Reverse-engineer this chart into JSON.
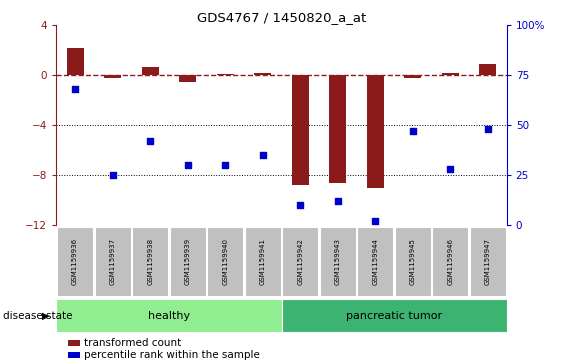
{
  "title": "GDS4767 / 1450820_a_at",
  "samples": [
    "GSM1159936",
    "GSM1159937",
    "GSM1159938",
    "GSM1159939",
    "GSM1159940",
    "GSM1159941",
    "GSM1159942",
    "GSM1159943",
    "GSM1159944",
    "GSM1159945",
    "GSM1159946",
    "GSM1159947"
  ],
  "bar_values": [
    2.2,
    -0.2,
    0.7,
    -0.5,
    0.1,
    0.2,
    -8.8,
    -8.6,
    -9.0,
    -0.2,
    0.15,
    0.9
  ],
  "scatter_values": [
    68,
    25,
    42,
    30,
    30,
    35,
    10,
    12,
    2,
    47,
    28,
    48
  ],
  "ylim_left": [
    -12,
    4
  ],
  "ylim_right": [
    0,
    100
  ],
  "yticks_left": [
    4,
    0,
    -4,
    -8,
    -12
  ],
  "yticks_right": [
    100,
    75,
    50,
    25,
    0
  ],
  "bar_color": "#8B1A1A",
  "scatter_color": "#0000CD",
  "healthy_color": "#90EE90",
  "tumor_color": "#3CB371",
  "label_bg_color": "#C0C0C0",
  "healthy_label": "healthy",
  "tumor_label": "pancreatic tumor",
  "disease_state_label": "disease state",
  "legend_bar": "transformed count",
  "legend_scatter": "percentile rank within the sample",
  "healthy_count": 6,
  "tumor_count": 6,
  "bar_width": 0.45
}
